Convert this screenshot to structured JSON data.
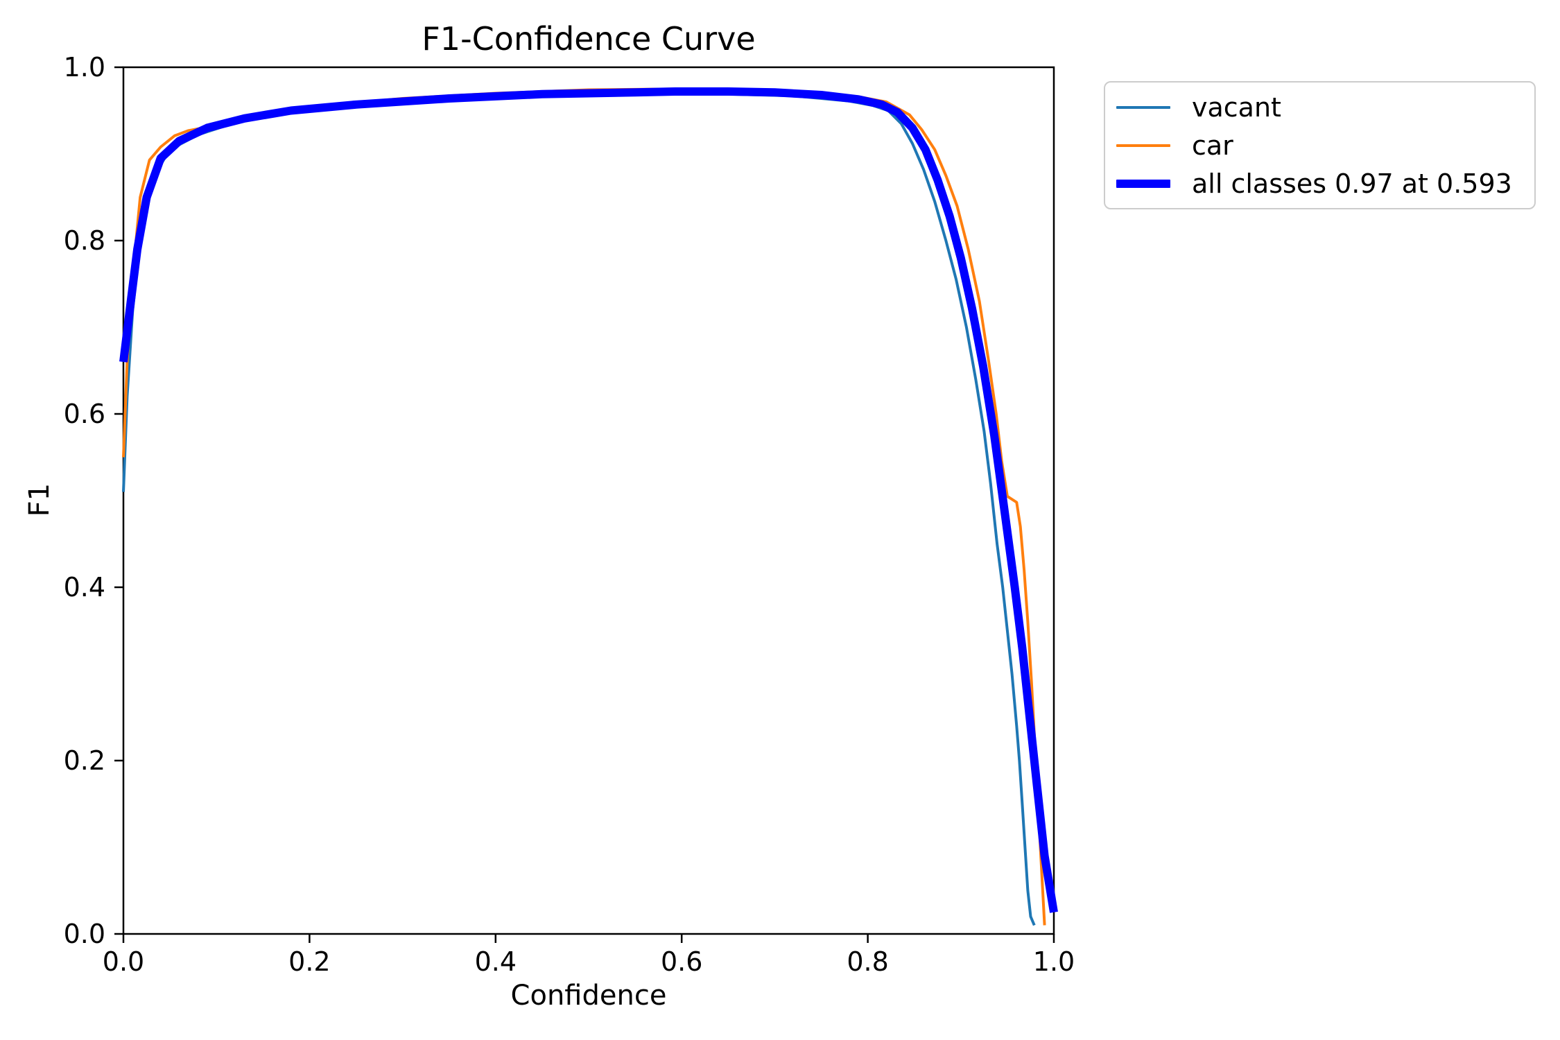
{
  "figure": {
    "background": "#ffffff",
    "text_color": "#000000",
    "spine_color": "#000000",
    "legend_border_color": "#cccccc"
  },
  "chart_data": {
    "type": "line",
    "title": "F1-Confidence Curve",
    "xlabel": "Confidence",
    "ylabel": "F1",
    "xlim": [
      0,
      1
    ],
    "ylim": [
      0,
      1
    ],
    "grid": false,
    "legend_position": "outside upper right",
    "x_tick_labels": [
      "0.0",
      "0.2",
      "0.4",
      "0.6",
      "0.8",
      "1.0"
    ],
    "y_tick_labels": [
      "0.0",
      "0.2",
      "0.4",
      "0.6",
      "0.8",
      "1.0"
    ],
    "best_f1": "0.97",
    "best_confidence": "0.593",
    "series": [
      {
        "name": "vacant",
        "legend_label": "vacant",
        "color": "#1f77b4",
        "line_width": 4,
        "x": [
          0.0,
          0.004,
          0.01,
          0.02,
          0.03,
          0.05,
          0.08,
          0.12,
          0.18,
          0.25,
          0.35,
          0.45,
          0.55,
          0.65,
          0.72,
          0.78,
          0.805,
          0.822,
          0.836,
          0.848,
          0.86,
          0.872,
          0.884,
          0.895,
          0.906,
          0.916,
          0.925,
          0.932,
          0.939,
          0.945,
          0.95,
          0.955,
          0.96,
          0.963,
          0.966,
          0.969,
          0.972,
          0.975,
          0.979
        ],
        "y": [
          0.51,
          0.62,
          0.72,
          0.82,
          0.87,
          0.905,
          0.922,
          0.936,
          0.948,
          0.956,
          0.963,
          0.967,
          0.969,
          0.969,
          0.967,
          0.961,
          0.956,
          0.95,
          0.935,
          0.912,
          0.882,
          0.845,
          0.8,
          0.755,
          0.7,
          0.64,
          0.58,
          0.52,
          0.45,
          0.4,
          0.35,
          0.3,
          0.24,
          0.2,
          0.15,
          0.1,
          0.05,
          0.02,
          0.01
        ]
      },
      {
        "name": "car",
        "legend_label": "car",
        "color": "#ff7f0e",
        "line_width": 4,
        "x": [
          0.0,
          0.004,
          0.01,
          0.018,
          0.028,
          0.04,
          0.055,
          0.07,
          0.09,
          0.12,
          0.16,
          0.22,
          0.3,
          0.4,
          0.5,
          0.6,
          0.68,
          0.74,
          0.79,
          0.82,
          0.845,
          0.858,
          0.872,
          0.884,
          0.896,
          0.908,
          0.92,
          0.93,
          0.938,
          0.944,
          0.95,
          0.96,
          0.964,
          0.968,
          0.972,
          0.976,
          0.98,
          0.984,
          0.988,
          0.99
        ],
        "y": [
          0.55,
          0.66,
          0.76,
          0.85,
          0.893,
          0.908,
          0.921,
          0.927,
          0.931,
          0.939,
          0.947,
          0.956,
          0.964,
          0.97,
          0.974,
          0.975,
          0.974,
          0.971,
          0.966,
          0.96,
          0.945,
          0.928,
          0.905,
          0.875,
          0.84,
          0.79,
          0.73,
          0.66,
          0.6,
          0.545,
          0.505,
          0.498,
          0.47,
          0.42,
          0.36,
          0.29,
          0.21,
          0.13,
          0.05,
          0.01
        ]
      },
      {
        "name": "all classes",
        "legend_label": "all classes 0.97 at 0.593",
        "color": "#0000ff",
        "line_width": 12,
        "x": [
          0.0,
          0.008,
          0.015,
          0.025,
          0.04,
          0.06,
          0.09,
          0.13,
          0.18,
          0.25,
          0.35,
          0.45,
          0.55,
          0.593,
          0.65,
          0.7,
          0.75,
          0.79,
          0.815,
          0.832,
          0.848,
          0.862,
          0.875,
          0.888,
          0.9,
          0.912,
          0.924,
          0.936,
          0.948,
          0.958,
          0.966,
          0.974,
          0.982,
          0.99,
          1.0
        ],
        "y": [
          0.66,
          0.73,
          0.79,
          0.85,
          0.895,
          0.915,
          0.93,
          0.941,
          0.95,
          0.957,
          0.964,
          0.969,
          0.971,
          0.972,
          0.972,
          0.971,
          0.968,
          0.963,
          0.957,
          0.948,
          0.93,
          0.905,
          0.87,
          0.828,
          0.78,
          0.722,
          0.655,
          0.575,
          0.48,
          0.4,
          0.33,
          0.25,
          0.17,
          0.09,
          0.025
        ]
      }
    ]
  }
}
